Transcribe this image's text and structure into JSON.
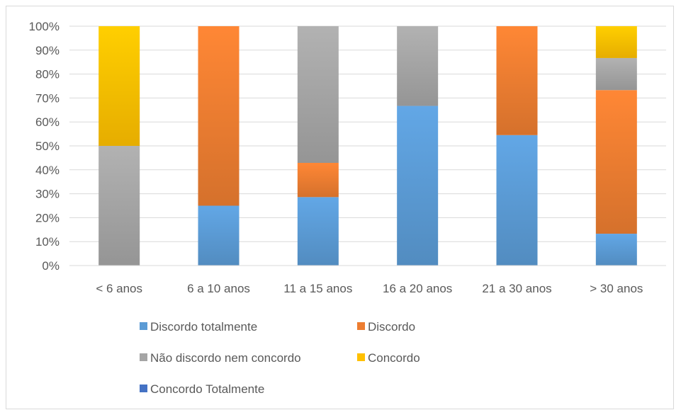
{
  "chart_data": {
    "type": "bar",
    "stacked": true,
    "normalized": true,
    "categories": [
      "< 6 anos",
      "6 a 10 anos",
      "11 a 15 anos",
      "16 a 20 anos",
      "21 a 30 anos",
      "> 30 anos"
    ],
    "series": [
      {
        "name": "Discordo totalmente",
        "color": "#5b9bd5",
        "values": [
          0,
          25,
          28.6,
          66.7,
          54.5,
          13.3
        ]
      },
      {
        "name": "Discordo",
        "color": "#ed7d31",
        "values": [
          0,
          75,
          14.3,
          0,
          45.5,
          60
        ]
      },
      {
        "name": "Não discordo nem concordo",
        "color": "#a5a5a5",
        "values": [
          50,
          0,
          57.1,
          33.3,
          0,
          13.4
        ]
      },
      {
        "name": "Concordo",
        "color": "#ffc000",
        "values": [
          50,
          0,
          0,
          0,
          0,
          13.3
        ]
      },
      {
        "name": "Concordo Totalmente",
        "color": "#4472c4",
        "values": [
          0,
          0,
          0,
          0,
          0,
          0
        ]
      }
    ],
    "y_ticks": [
      "0%",
      "10%",
      "20%",
      "30%",
      "40%",
      "50%",
      "60%",
      "70%",
      "80%",
      "90%",
      "100%"
    ],
    "ylim": [
      0,
      100
    ],
    "grid": true,
    "legend_position": "bottom",
    "title": "",
    "xlabel": "",
    "ylabel": ""
  }
}
